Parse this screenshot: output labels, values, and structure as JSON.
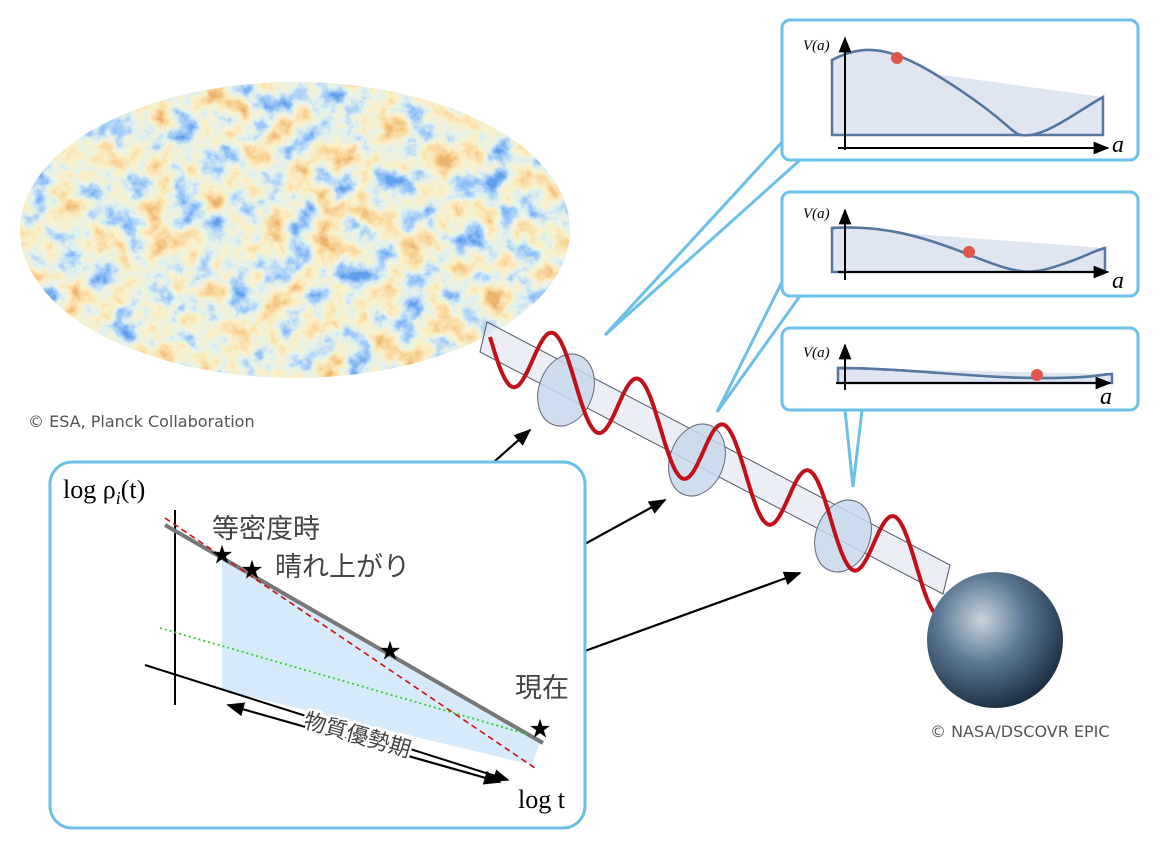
{
  "credits": {
    "cmb": "© ESA, Planck Collaboration",
    "earth": "© NASA/DSCOVR EPIC"
  },
  "density_plot": {
    "y_label": {
      "prefix": "log ρ",
      "subscript": "i",
      "suffix": "(t)"
    },
    "x_label": "log t",
    "annotations": {
      "equality": "等密度時",
      "recombination": "晴れ上がり",
      "present": "現在",
      "matter_era": "物質優勢期"
    }
  },
  "potential_panels": [
    {
      "y_label": "V(a)",
      "x_label": "a"
    },
    {
      "y_label": "V(a)",
      "x_label": "a"
    },
    {
      "y_label": "V(a)",
      "x_label": "a"
    }
  ]
}
